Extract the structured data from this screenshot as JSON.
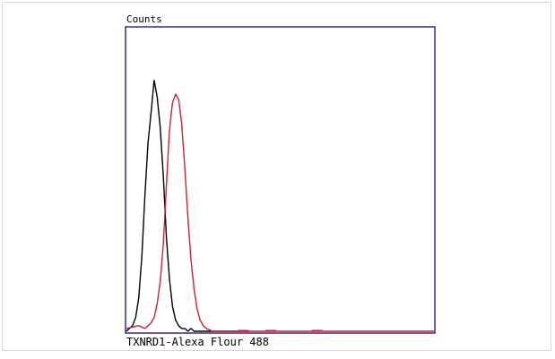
{
  "chart_data": {
    "type": "line",
    "ylabel": "Counts",
    "xlabel": "TXNRD1-Alexa Flour 488",
    "xlim": [
      0,
      100
    ],
    "ylim": [
      0,
      100
    ],
    "grid": false,
    "colors": {
      "plot_border": "#2a2aa8",
      "series_black": "#000000",
      "series_red": "#cc2233"
    },
    "series": [
      {
        "color": "#000000",
        "x": [
          0,
          1,
          2,
          3,
          4,
          5,
          6,
          7,
          8,
          9,
          10,
          11,
          12,
          13,
          14,
          15,
          16,
          17,
          18,
          19,
          20,
          21,
          22,
          23,
          24,
          25,
          30,
          40
        ],
        "y": [
          0,
          1,
          2,
          5,
          12,
          27,
          49,
          68,
          79,
          91,
          85,
          74,
          56,
          34,
          19,
          9,
          4,
          2,
          1,
          1,
          0,
          1,
          0,
          0,
          0,
          0,
          0,
          0
        ]
      },
      {
        "color": "#cc2233",
        "x": [
          0,
          4,
          6,
          8,
          9,
          10,
          11,
          12,
          13,
          14,
          15,
          16,
          17,
          18,
          19,
          20,
          21,
          22,
          23,
          24,
          25,
          26,
          28,
          30,
          35,
          40,
          45,
          60,
          100
        ],
        "y": [
          1,
          2,
          1,
          3,
          5,
          10,
          18,
          32,
          53,
          73,
          83,
          86,
          84,
          75,
          59,
          41,
          26,
          15,
          8,
          4,
          2,
          1,
          0,
          0,
          0,
          0,
          0,
          0,
          0
        ]
      }
    ]
  }
}
